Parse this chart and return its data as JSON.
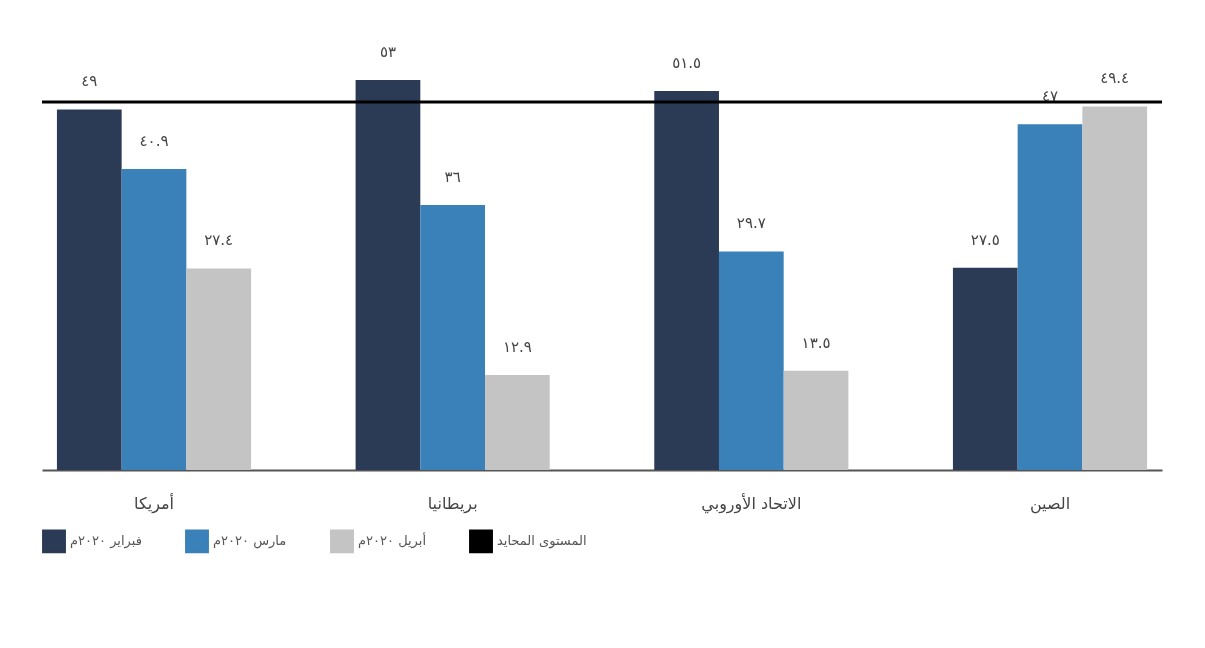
{
  "chart_data": {
    "type": "bar",
    "categories": [
      "أمريكا",
      "بريطانيا",
      "الاتحاد الأوروبي",
      "الصين"
    ],
    "series": [
      {
        "name": "فبراير ٢٠٢٠م",
        "color": "#2b3a55",
        "values": [
          49,
          53,
          51.5,
          27.5
        ],
        "value_labels": [
          "٤٩",
          "٥٣",
          "٥١.٥",
          "٢٧.٥"
        ]
      },
      {
        "name": "مارس ٢٠٢٠م",
        "color": "#3a80b9",
        "values": [
          40.9,
          36,
          29.7,
          47
        ],
        "value_labels": [
          "٤٠.٩",
          "٣٦",
          "٢٩.٧",
          "٤٧"
        ]
      },
      {
        "name": "أبريل ٢٠٢٠م",
        "color": "#c4c4c4",
        "values": [
          27.4,
          12.9,
          13.5,
          49.4
        ],
        "value_labels": [
          "٢٧.٤",
          "١٢.٩",
          "١٣.٥",
          "٤٩.٤"
        ]
      }
    ],
    "ref_lines": [
      {
        "axis": "y",
        "value": 50,
        "label": "المستوى المحايد",
        "color": "#000000"
      }
    ],
    "legend": "bottom",
    "grid": false
  }
}
